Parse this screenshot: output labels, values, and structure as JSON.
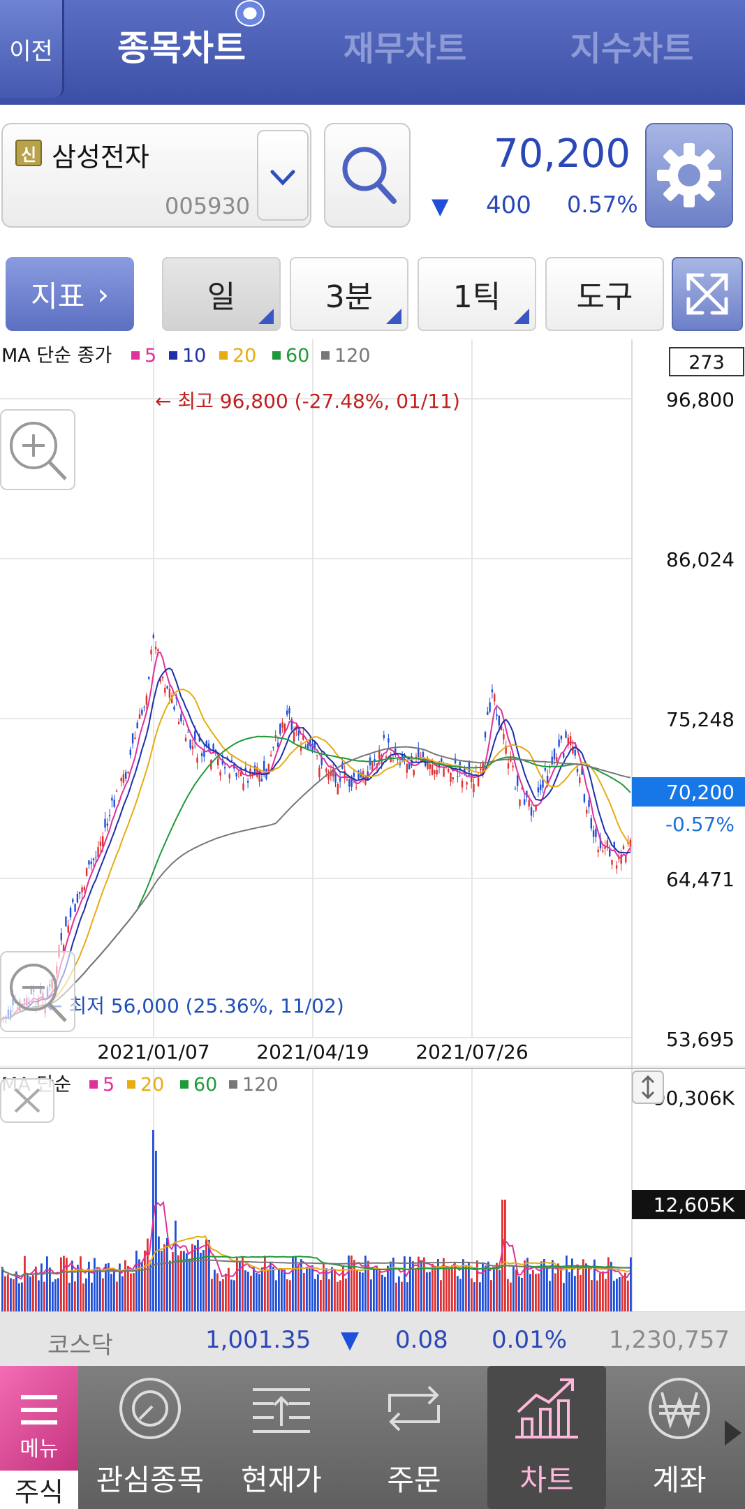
{
  "header": {
    "back_label": "이전",
    "tabs": [
      "종목차트",
      "재무차트",
      "지수차트"
    ],
    "active_tab": "종목차트"
  },
  "stock": {
    "credit_badge": "신",
    "name": "삼성전자",
    "code": "005930",
    "price": "70,200",
    "change": "400",
    "change_pct": "0.57%",
    "change_direction": "down"
  },
  "toolbar": {
    "indicator": "지표",
    "period": "일",
    "minute": "3분",
    "tick": "1틱",
    "tools": "도구"
  },
  "price_chart": {
    "legend_prefix": "MA 단순 종가",
    "ma": [
      {
        "label": "5",
        "color": "#e0309a"
      },
      {
        "label": "10",
        "color": "#1e2fa8"
      },
      {
        "label": "20",
        "color": "#e6ac12"
      },
      {
        "label": "60",
        "color": "#1f9a3a"
      },
      {
        "label": "120",
        "color": "#777777"
      }
    ],
    "count_box": "273",
    "y_labels": [
      "96,800",
      "86,024",
      "75,248",
      "64,471",
      "53,695"
    ],
    "current_price": "70,200",
    "current_pct": "-0.57%",
    "high_note": "← 최고 96,800 (-27.48%, 01/11)",
    "low_note": "← 최저 56,000 (25.36%, 11/02)",
    "x_labels": [
      "2021/01/07",
      "2021/04/19",
      "2021/07/26"
    ]
  },
  "volume_chart": {
    "legend_prefix": "MA 단순",
    "ma": [
      {
        "label": "5",
        "color": "#e0309a"
      },
      {
        "label": "20",
        "color": "#e6ac12"
      },
      {
        "label": "60",
        "color": "#1f9a3a"
      },
      {
        "label": "120",
        "color": "#777777"
      }
    ],
    "max_label": "90,306K",
    "current_label": "12,605K"
  },
  "ticker": {
    "name": "코스닥",
    "value": "1,001.35",
    "change": "0.08",
    "pct": "0.01%",
    "volume": "1,230,757",
    "direction": "down"
  },
  "bottom_nav": {
    "menu_label": "메뉴",
    "stock_label": "주식",
    "items": [
      {
        "label": "관심종목",
        "icon": "watchlist-icon"
      },
      {
        "label": "현재가",
        "icon": "current-price-icon"
      },
      {
        "label": "주문",
        "icon": "order-icon"
      },
      {
        "label": "차트",
        "icon": "chart-icon"
      },
      {
        "label": "계좌",
        "icon": "account-won-icon"
      }
    ],
    "active": "차트"
  },
  "colors": {
    "up": "#e03030",
    "down": "#1f4fd8",
    "accent": "#3c4fa6",
    "highlight": "#1877e6"
  }
}
